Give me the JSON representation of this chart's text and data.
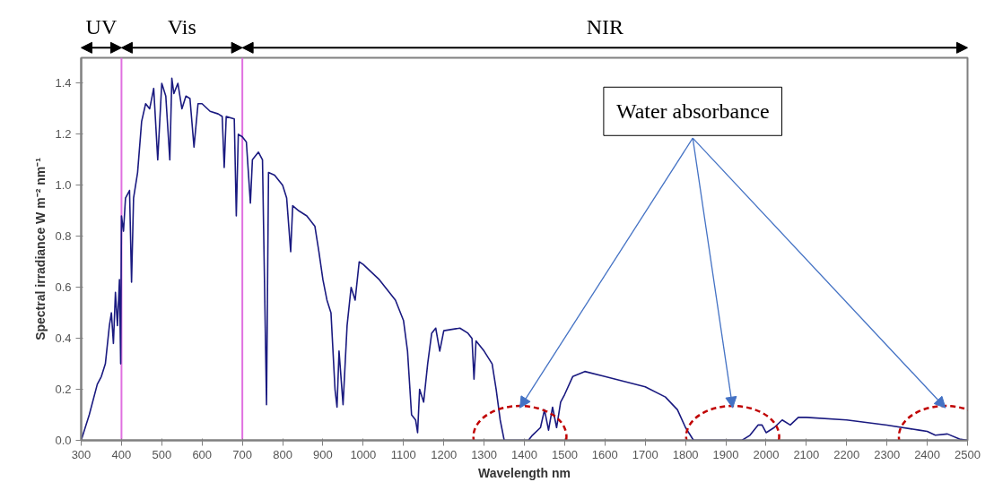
{
  "chart_data": {
    "type": "line",
    "xlabel": "Wavelength nm",
    "ylabel": "Spectral irradiance W m⁻² nm⁻¹",
    "x": [
      300,
      320,
      340,
      350,
      360,
      370,
      375,
      380,
      385,
      390,
      395,
      398,
      400,
      405,
      410,
      420,
      425,
      430,
      440,
      450,
      460,
      470,
      480,
      490,
      500,
      510,
      520,
      525,
      530,
      540,
      550,
      560,
      570,
      580,
      590,
      600,
      620,
      640,
      650,
      655,
      660,
      680,
      685,
      690,
      700,
      710,
      715,
      720,
      725,
      740,
      750,
      760,
      765,
      780,
      800,
      810,
      820,
      825,
      840,
      860,
      880,
      890,
      900,
      910,
      920,
      930,
      935,
      940,
      950,
      960,
      970,
      980,
      990,
      1000,
      1040,
      1080,
      1100,
      1110,
      1120,
      1130,
      1135,
      1140,
      1150,
      1160,
      1170,
      1180,
      1190,
      1200,
      1240,
      1260,
      1270,
      1275,
      1280,
      1300,
      1320,
      1330,
      1340,
      1350,
      1410,
      1420,
      1440,
      1450,
      1460,
      1470,
      1480,
      1490,
      1500,
      1520,
      1550,
      1600,
      1650,
      1700,
      1750,
      1780,
      1800,
      1820,
      1940,
      1960,
      1980,
      1990,
      2000,
      2020,
      2040,
      2060,
      2080,
      2100,
      2200,
      2300,
      2380,
      2400,
      2420,
      2450,
      2480,
      2500
    ],
    "series": [
      {
        "color": "#1a1a80",
        "values": [
          0,
          0.1,
          0.22,
          0.25,
          0.3,
          0.45,
          0.5,
          0.38,
          0.58,
          0.45,
          0.63,
          0.3,
          0.88,
          0.82,
          0.95,
          0.98,
          0.62,
          0.95,
          1.05,
          1.25,
          1.32,
          1.3,
          1.38,
          1.1,
          1.4,
          1.35,
          1.1,
          1.42,
          1.36,
          1.4,
          1.3,
          1.35,
          1.34,
          1.15,
          1.32,
          1.32,
          1.29,
          1.28,
          1.27,
          1.07,
          1.27,
          1.26,
          0.88,
          1.2,
          1.19,
          1.17,
          1.05,
          0.93,
          1.1,
          1.13,
          1.1,
          0.14,
          1.05,
          1.04,
          1.0,
          0.95,
          0.74,
          0.92,
          0.9,
          0.88,
          0.84,
          0.74,
          0.63,
          0.55,
          0.5,
          0.2,
          0.13,
          0.35,
          0.14,
          0.45,
          0.6,
          0.55,
          0.7,
          0.69,
          0.63,
          0.55,
          0.47,
          0.35,
          0.1,
          0.08,
          0.03,
          0.2,
          0.15,
          0.3,
          0.42,
          0.44,
          0.35,
          0.43,
          0.44,
          0.42,
          0.4,
          0.24,
          0.39,
          0.35,
          0.3,
          0.2,
          0.08,
          0,
          0,
          0.02,
          0.05,
          0.12,
          0.04,
          0.13,
          0.05,
          0.15,
          0.18,
          0.25,
          0.27,
          0.25,
          0.23,
          0.21,
          0.17,
          0.12,
          0.05,
          0,
          0,
          0.02,
          0.06,
          0.06,
          0.03,
          0.05,
          0.08,
          0.06,
          0.09,
          0.09,
          0.08,
          0.06,
          0.04,
          0.035,
          0.02,
          0.025,
          0.005,
          0
        ]
      }
    ],
    "xlim": [
      300,
      2500
    ],
    "ylim": [
      0,
      1.5
    ],
    "xticks": [
      300,
      400,
      500,
      600,
      700,
      800,
      900,
      1000,
      1100,
      1200,
      1300,
      1400,
      1500,
      1600,
      1700,
      1800,
      1900,
      2000,
      2100,
      2200,
      2300,
      2400,
      2500
    ],
    "yticks": [
      {
        "value": 0,
        "label": "0.0"
      },
      0.2,
      0.4,
      0.6,
      0.8,
      {
        "value": 1,
        "label": "1.0"
      },
      1.2,
      1.4
    ],
    "ref_lines": [
      {
        "axis": "x",
        "value": 400,
        "color": "#e070e0"
      },
      {
        "axis": "x",
        "value": 700,
        "color": "#e070e0"
      }
    ],
    "annotations": [
      "UV",
      "Vis",
      "NIR",
      "Water absorbance"
    ],
    "grid": false,
    "marker": "none",
    "line_style": "solid"
  }
}
